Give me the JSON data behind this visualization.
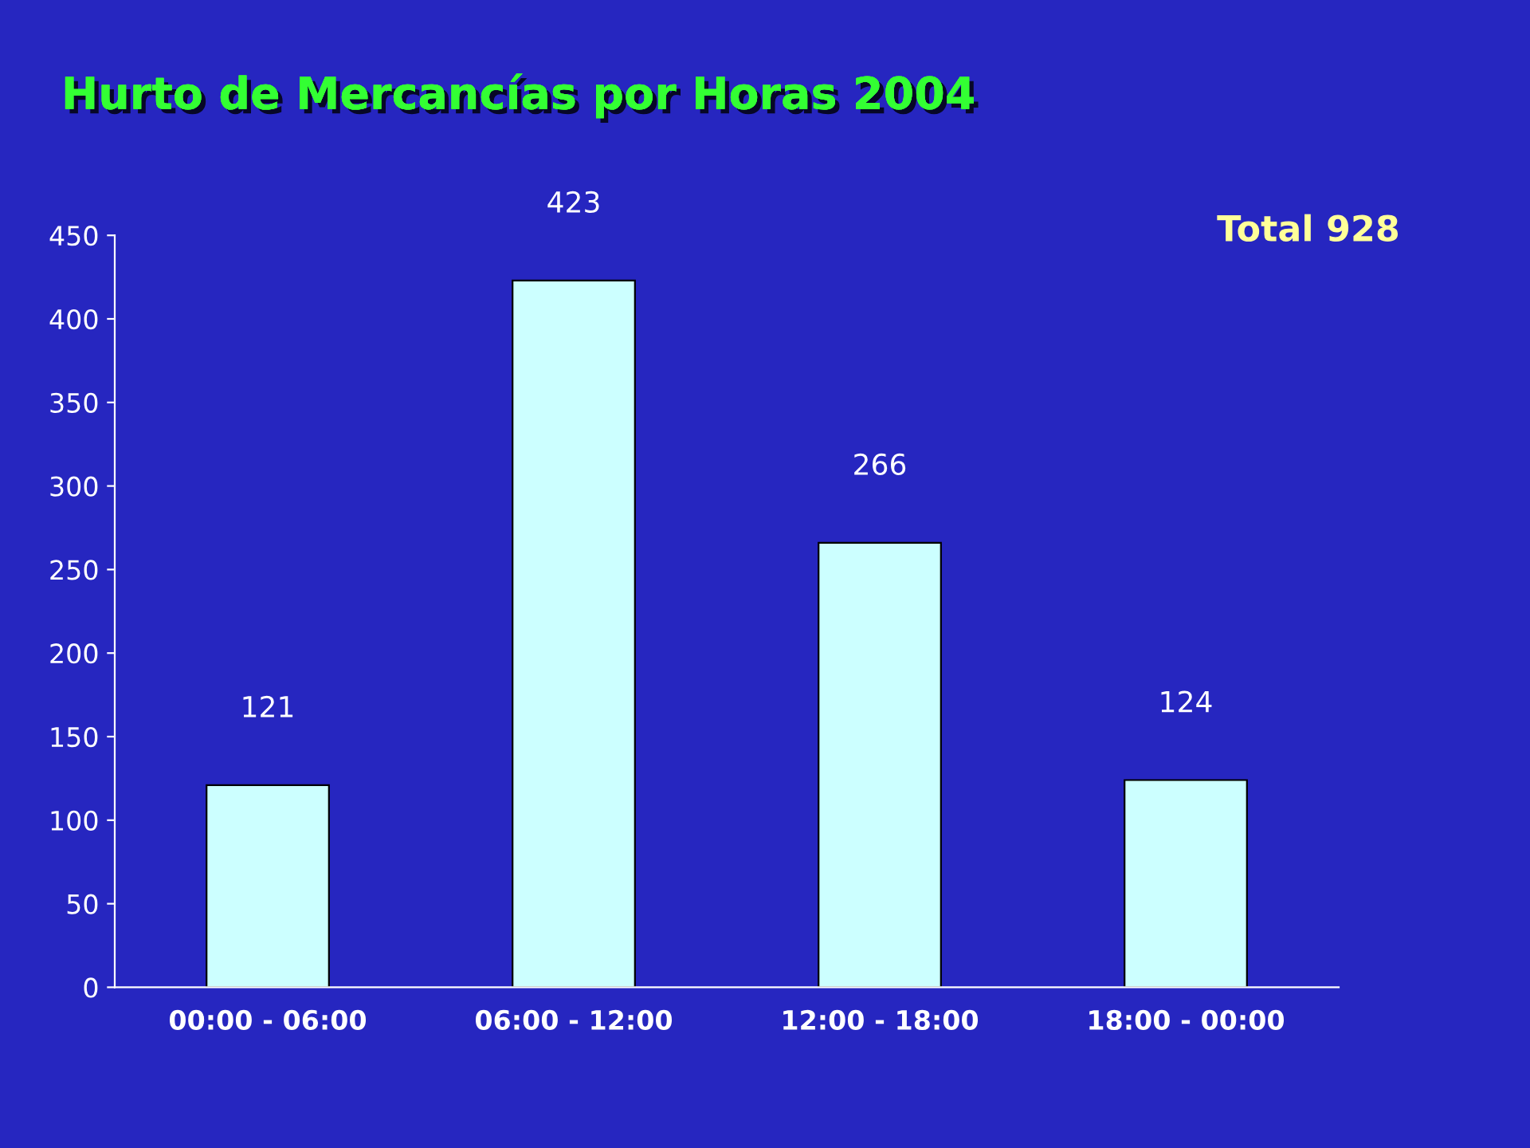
{
  "chart_data": {
    "type": "bar",
    "title": "Hurto de Mercancías por Horas 2004",
    "categories": [
      "00:00 - 06:00",
      "06:00 - 12:00",
      "12:00 - 18:00",
      "18:00 - 00:00"
    ],
    "values": [
      121,
      423,
      266,
      124
    ],
    "color": "#ccffff",
    "ylim": [
      0,
      450
    ],
    "yticks": [
      0,
      50,
      100,
      150,
      200,
      250,
      300,
      350,
      400,
      450
    ],
    "data_labels": true,
    "grid": false,
    "legend": false,
    "annotations": [
      "Total 928"
    ]
  }
}
